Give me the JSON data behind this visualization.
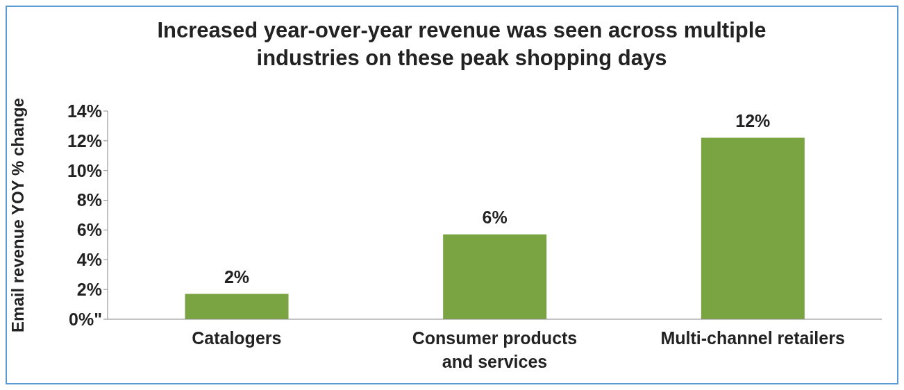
{
  "chart_data": {
    "type": "bar",
    "title": "Increased year-over-year revenue was seen across multiple industries on these peak shopping days",
    "ylabel": "Email revenue YOY % change",
    "categories": [
      "Catalogers",
      "Consumer products and services",
      "Multi-channel retailers"
    ],
    "values": [
      1.7,
      5.7,
      12.2
    ],
    "value_labels": [
      "2%",
      "6%",
      "12%"
    ],
    "color": "#7aa441",
    "ylim": [
      0,
      14
    ],
    "yticks": [
      {
        "value": 0,
        "label": "0%\""
      },
      {
        "value": 2,
        "label": "2%"
      },
      {
        "value": 4,
        "label": "4%"
      },
      {
        "value": 6,
        "label": "6%"
      },
      {
        "value": 8,
        "label": "8%"
      },
      {
        "value": 10,
        "label": "10%"
      },
      {
        "value": 12,
        "label": "12%"
      },
      {
        "value": 14,
        "label": "14%"
      }
    ],
    "grid": false,
    "legend": false
  }
}
